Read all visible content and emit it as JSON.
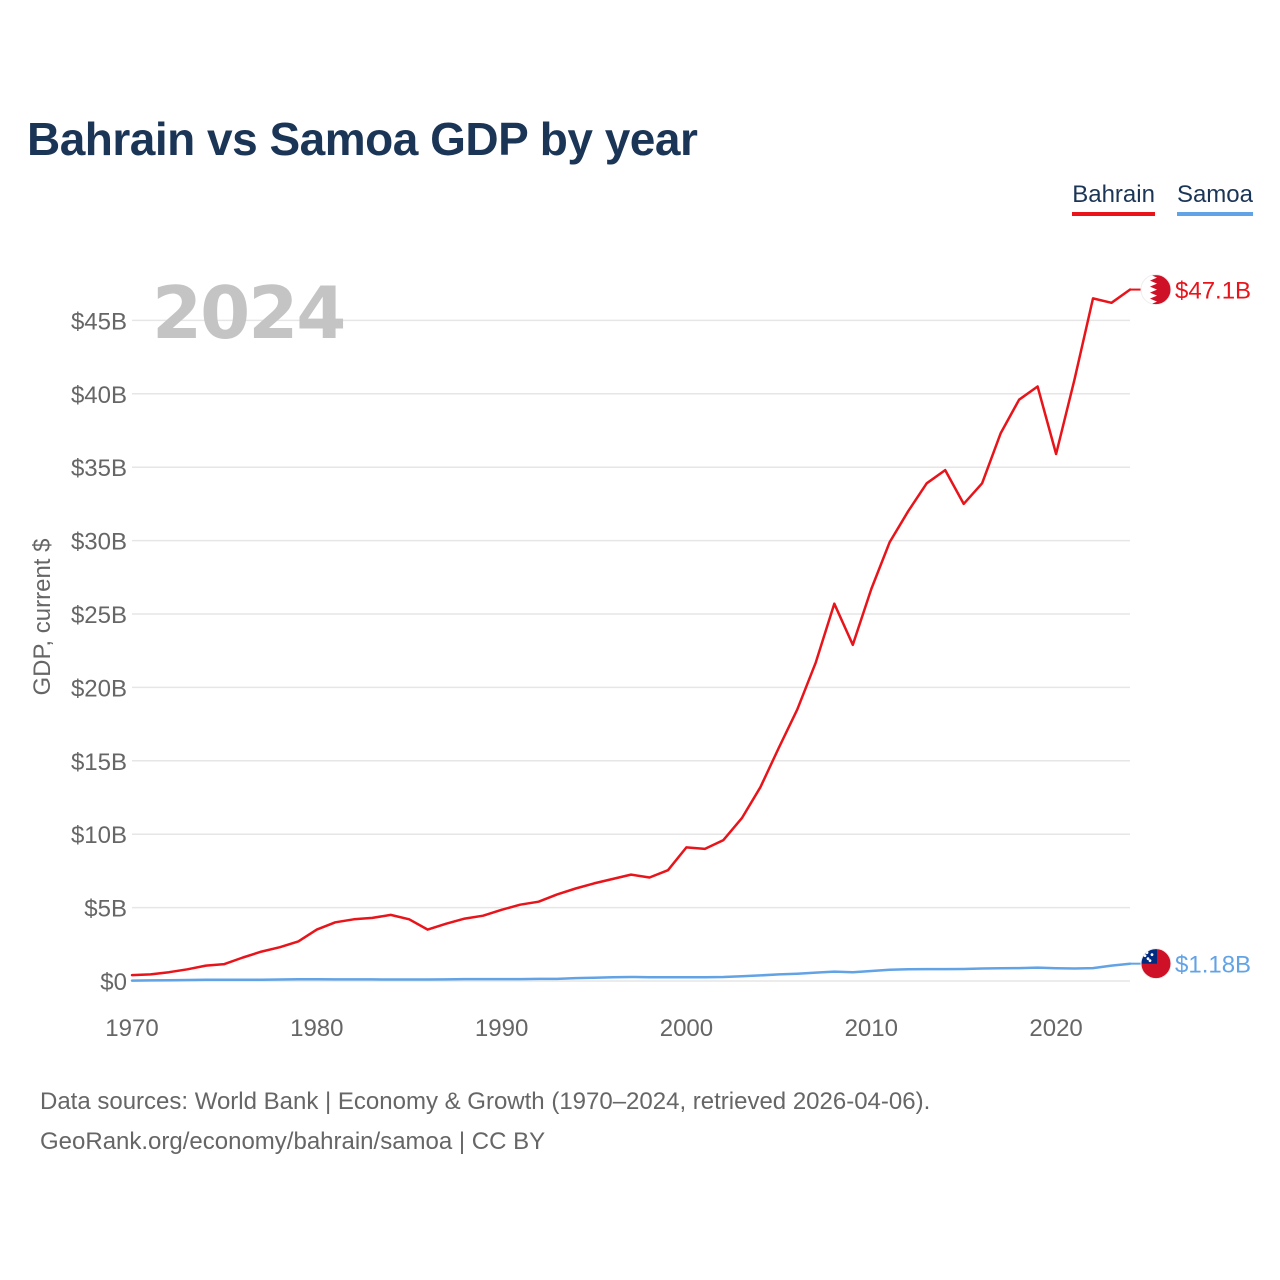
{
  "title": "Bahrain vs Samoa GDP by year",
  "legend": {
    "bahrain": "Bahrain",
    "samoa": "Samoa"
  },
  "colors": {
    "bahrain": "#e8141a",
    "samoa": "#62a3e6",
    "grid": "#e6e6e6",
    "axis_text": "#666666",
    "year_overlay": "#c4c4c4"
  },
  "chart_data": {
    "type": "line",
    "title": "Bahrain vs Samoa GDP by year",
    "xlabel": "",
    "ylabel": "GDP, current $",
    "current_year": "2024",
    "xlim": [
      1970,
      2024
    ],
    "ylim": [
      0,
      50
    ],
    "yticks": [
      0,
      5,
      10,
      15,
      20,
      25,
      30,
      35,
      40,
      45
    ],
    "ytick_labels": [
      "$0",
      "$5B",
      "$10B",
      "$15B",
      "$20B",
      "$25B",
      "$30B",
      "$35B",
      "$40B",
      "$45B"
    ],
    "xticks": [
      1970,
      1980,
      1990,
      2000,
      2010,
      2020
    ],
    "xtick_labels": [
      "1970",
      "1980",
      "1990",
      "2000",
      "2010",
      "2020"
    ],
    "units": "billions USD",
    "series": [
      {
        "name": "Bahrain",
        "key": "bahrain",
        "end_label": "$47.1B",
        "x": [
          1970,
          1971,
          1972,
          1973,
          1974,
          1975,
          1976,
          1977,
          1978,
          1979,
          1980,
          1981,
          1982,
          1983,
          1984,
          1985,
          1986,
          1987,
          1988,
          1989,
          1990,
          1991,
          1992,
          1993,
          1994,
          1995,
          1996,
          1997,
          1998,
          1999,
          2000,
          2001,
          2002,
          2003,
          2004,
          2005,
          2006,
          2007,
          2008,
          2009,
          2010,
          2011,
          2012,
          2013,
          2014,
          2015,
          2016,
          2017,
          2018,
          2019,
          2020,
          2021,
          2022,
          2023,
          2024
        ],
        "values": [
          0.4,
          0.45,
          0.6,
          0.8,
          1.05,
          1.15,
          1.6,
          2.0,
          2.3,
          2.7,
          3.5,
          4.0,
          4.2,
          4.3,
          4.5,
          4.2,
          3.5,
          3.9,
          4.25,
          4.45,
          4.85,
          5.2,
          5.4,
          5.9,
          6.3,
          6.65,
          6.95,
          7.25,
          7.05,
          7.55,
          9.1,
          9.0,
          9.6,
          11.1,
          13.2,
          15.9,
          18.5,
          21.7,
          25.7,
          22.9,
          26.7,
          29.9,
          32.0,
          33.9,
          34.8,
          32.5,
          33.9,
          37.3,
          39.6,
          40.5,
          35.9,
          41.0,
          46.5,
          46.2,
          47.1
        ]
      },
      {
        "name": "Samoa",
        "key": "samoa",
        "end_label": "$1.18B",
        "x": [
          1970,
          1971,
          1972,
          1973,
          1974,
          1975,
          1976,
          1977,
          1978,
          1979,
          1980,
          1981,
          1982,
          1983,
          1984,
          1985,
          1986,
          1987,
          1988,
          1989,
          1990,
          1991,
          1992,
          1993,
          1994,
          1995,
          1996,
          1997,
          1998,
          1999,
          2000,
          2001,
          2002,
          2003,
          2004,
          2005,
          2006,
          2007,
          2008,
          2009,
          2010,
          2011,
          2012,
          2013,
          2014,
          2015,
          2016,
          2017,
          2018,
          2019,
          2020,
          2021,
          2022,
          2023,
          2024
        ],
        "values": [
          0.03,
          0.04,
          0.05,
          0.07,
          0.08,
          0.08,
          0.08,
          0.09,
          0.1,
          0.12,
          0.12,
          0.11,
          0.11,
          0.11,
          0.1,
          0.1,
          0.1,
          0.11,
          0.13,
          0.13,
          0.13,
          0.13,
          0.14,
          0.14,
          0.2,
          0.22,
          0.25,
          0.27,
          0.26,
          0.25,
          0.26,
          0.26,
          0.27,
          0.33,
          0.38,
          0.45,
          0.5,
          0.57,
          0.64,
          0.6,
          0.68,
          0.77,
          0.8,
          0.81,
          0.81,
          0.82,
          0.85,
          0.87,
          0.88,
          0.91,
          0.87,
          0.85,
          0.88,
          1.05,
          1.18
        ]
      }
    ]
  },
  "footer": {
    "line1": "Data sources: World Bank | Economy & Growth (1970–2024, retrieved 2026-04-06).",
    "line2": "GeoRank.org/economy/bahrain/samoa | CC BY"
  }
}
